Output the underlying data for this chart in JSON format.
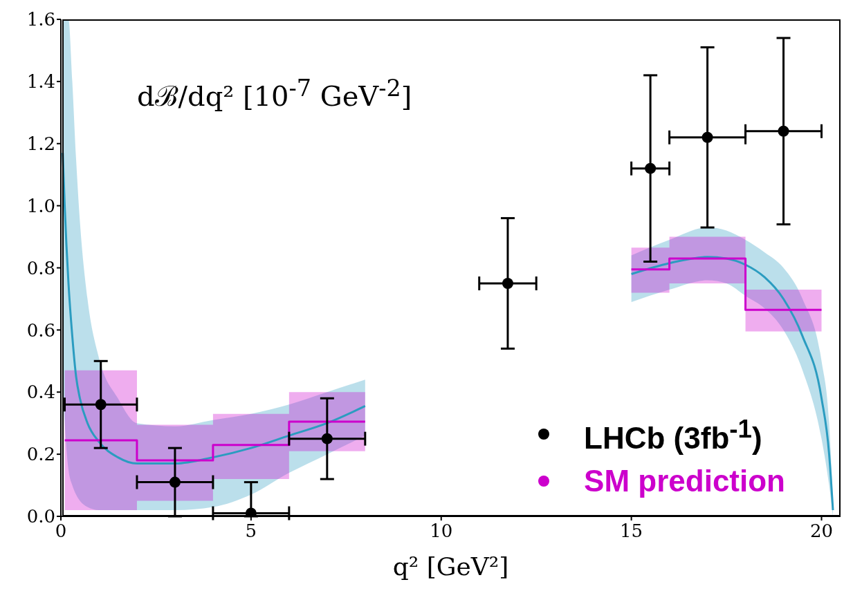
{
  "chart_data": {
    "type": "scatter",
    "ylabel": "dℬ/dq² [10$^{-7}$ GeV$^{-2}$]",
    "xlabel": "q² [GeV²]",
    "xlim": [
      0,
      20.5
    ],
    "xticks": [
      0,
      5,
      10,
      15,
      20
    ],
    "ylim": [
      0,
      1.6
    ],
    "yticks": [
      {
        "value": 0,
        "label": "0.0"
      },
      {
        "value": 0.2,
        "label": "0.2"
      },
      {
        "value": 0.4,
        "label": "0.4"
      },
      {
        "value": 0.6,
        "label": "0.6"
      },
      {
        "value": 0.8,
        "label": "0.8"
      },
      {
        "value": 1,
        "label": "1.0"
      },
      {
        "value": 1.2,
        "label": "1.2"
      },
      {
        "value": 1.4,
        "label": "1.4"
      },
      {
        "value": 1.6,
        "label": "1.6"
      }
    ],
    "legend": "bottom right",
    "series": [
      {
        "type": "line",
        "color": "#2b9cc0",
        "x": [
          0.05,
          0.1,
          0.2,
          0.3,
          0.4,
          0.5,
          0.7,
          1,
          1.5,
          2,
          3,
          4,
          5,
          6,
          7,
          8
        ],
        "values": [
          1.17,
          1.0,
          0.75,
          0.58,
          0.45,
          0.38,
          0.3,
          0.24,
          0.19,
          0.17,
          0.17,
          0.19,
          0.22,
          0.26,
          0.3,
          0.355
        ],
        "lower": [
          0.4,
          0.3,
          0.15,
          0.1,
          0.07,
          0.05,
          0.03,
          0.02,
          0.02,
          0.02,
          0.02,
          0.03,
          0.07,
          0.14,
          0.2,
          0.26
        ],
        "upper": [
          1.6,
          1.6,
          1.6,
          1.4,
          1.15,
          0.95,
          0.7,
          0.51,
          0.38,
          0.3,
          0.29,
          0.31,
          0.33,
          0.36,
          0.4,
          0.44
        ],
        "marker": "none"
      },
      {
        "type": "line",
        "color": "#2b9cc0",
        "x": [
          15,
          16,
          17,
          17.5,
          18,
          18.5,
          19,
          19.5,
          20,
          20.2,
          20.3
        ],
        "values": [
          0.78,
          0.815,
          0.835,
          0.83,
          0.81,
          0.77,
          0.7,
          0.58,
          0.38,
          0.2,
          0.02
        ],
        "lower": [
          0.69,
          0.73,
          0.76,
          0.75,
          0.71,
          0.67,
          0.6,
          0.47,
          0.25,
          0.1,
          0
        ],
        "upper": [
          0.84,
          0.89,
          0.93,
          0.92,
          0.89,
          0.85,
          0.8,
          0.7,
          0.5,
          0.3,
          0.05
        ],
        "marker": "none"
      },
      {
        "name": "SM prediction",
        "type": "step",
        "color": "#cc00cc",
        "x": [
          0.1,
          2,
          4,
          6,
          8,
          11,
          15,
          16,
          18,
          20
        ],
        "values": [
          0.245,
          0.18,
          0.23,
          0.305,
          0.305,
          null,
          0.795,
          0.83,
          0.665,
          0.665
        ],
        "lower": [
          0.02,
          0.05,
          0.12,
          0.21,
          0.21,
          null,
          0.72,
          0.75,
          0.595,
          0.595
        ],
        "upper": [
          0.47,
          0.295,
          0.33,
          0.4,
          0.4,
          null,
          0.865,
          0.9,
          0.73,
          0.73
        ],
        "marker": "none"
      },
      {
        "name": "LHCb (3fb$^{-1}$)",
        "color": "#000000",
        "x": [
          1.05,
          3,
          5,
          7,
          11.75,
          15.5,
          17,
          19
        ],
        "values": [
          0.36,
          0.11,
          0.01,
          0.25,
          0.75,
          1.12,
          1.22,
          1.24
        ],
        "errors": [
          0.14,
          0.11,
          [
            0,
            0.11
          ],
          0.13,
          0.21,
          0.3,
          0.29,
          0.3
        ],
        "xerrors": [
          0.95,
          1,
          1,
          1,
          0.75,
          0.5,
          1,
          1
        ],
        "marker": "circle"
      }
    ]
  }
}
